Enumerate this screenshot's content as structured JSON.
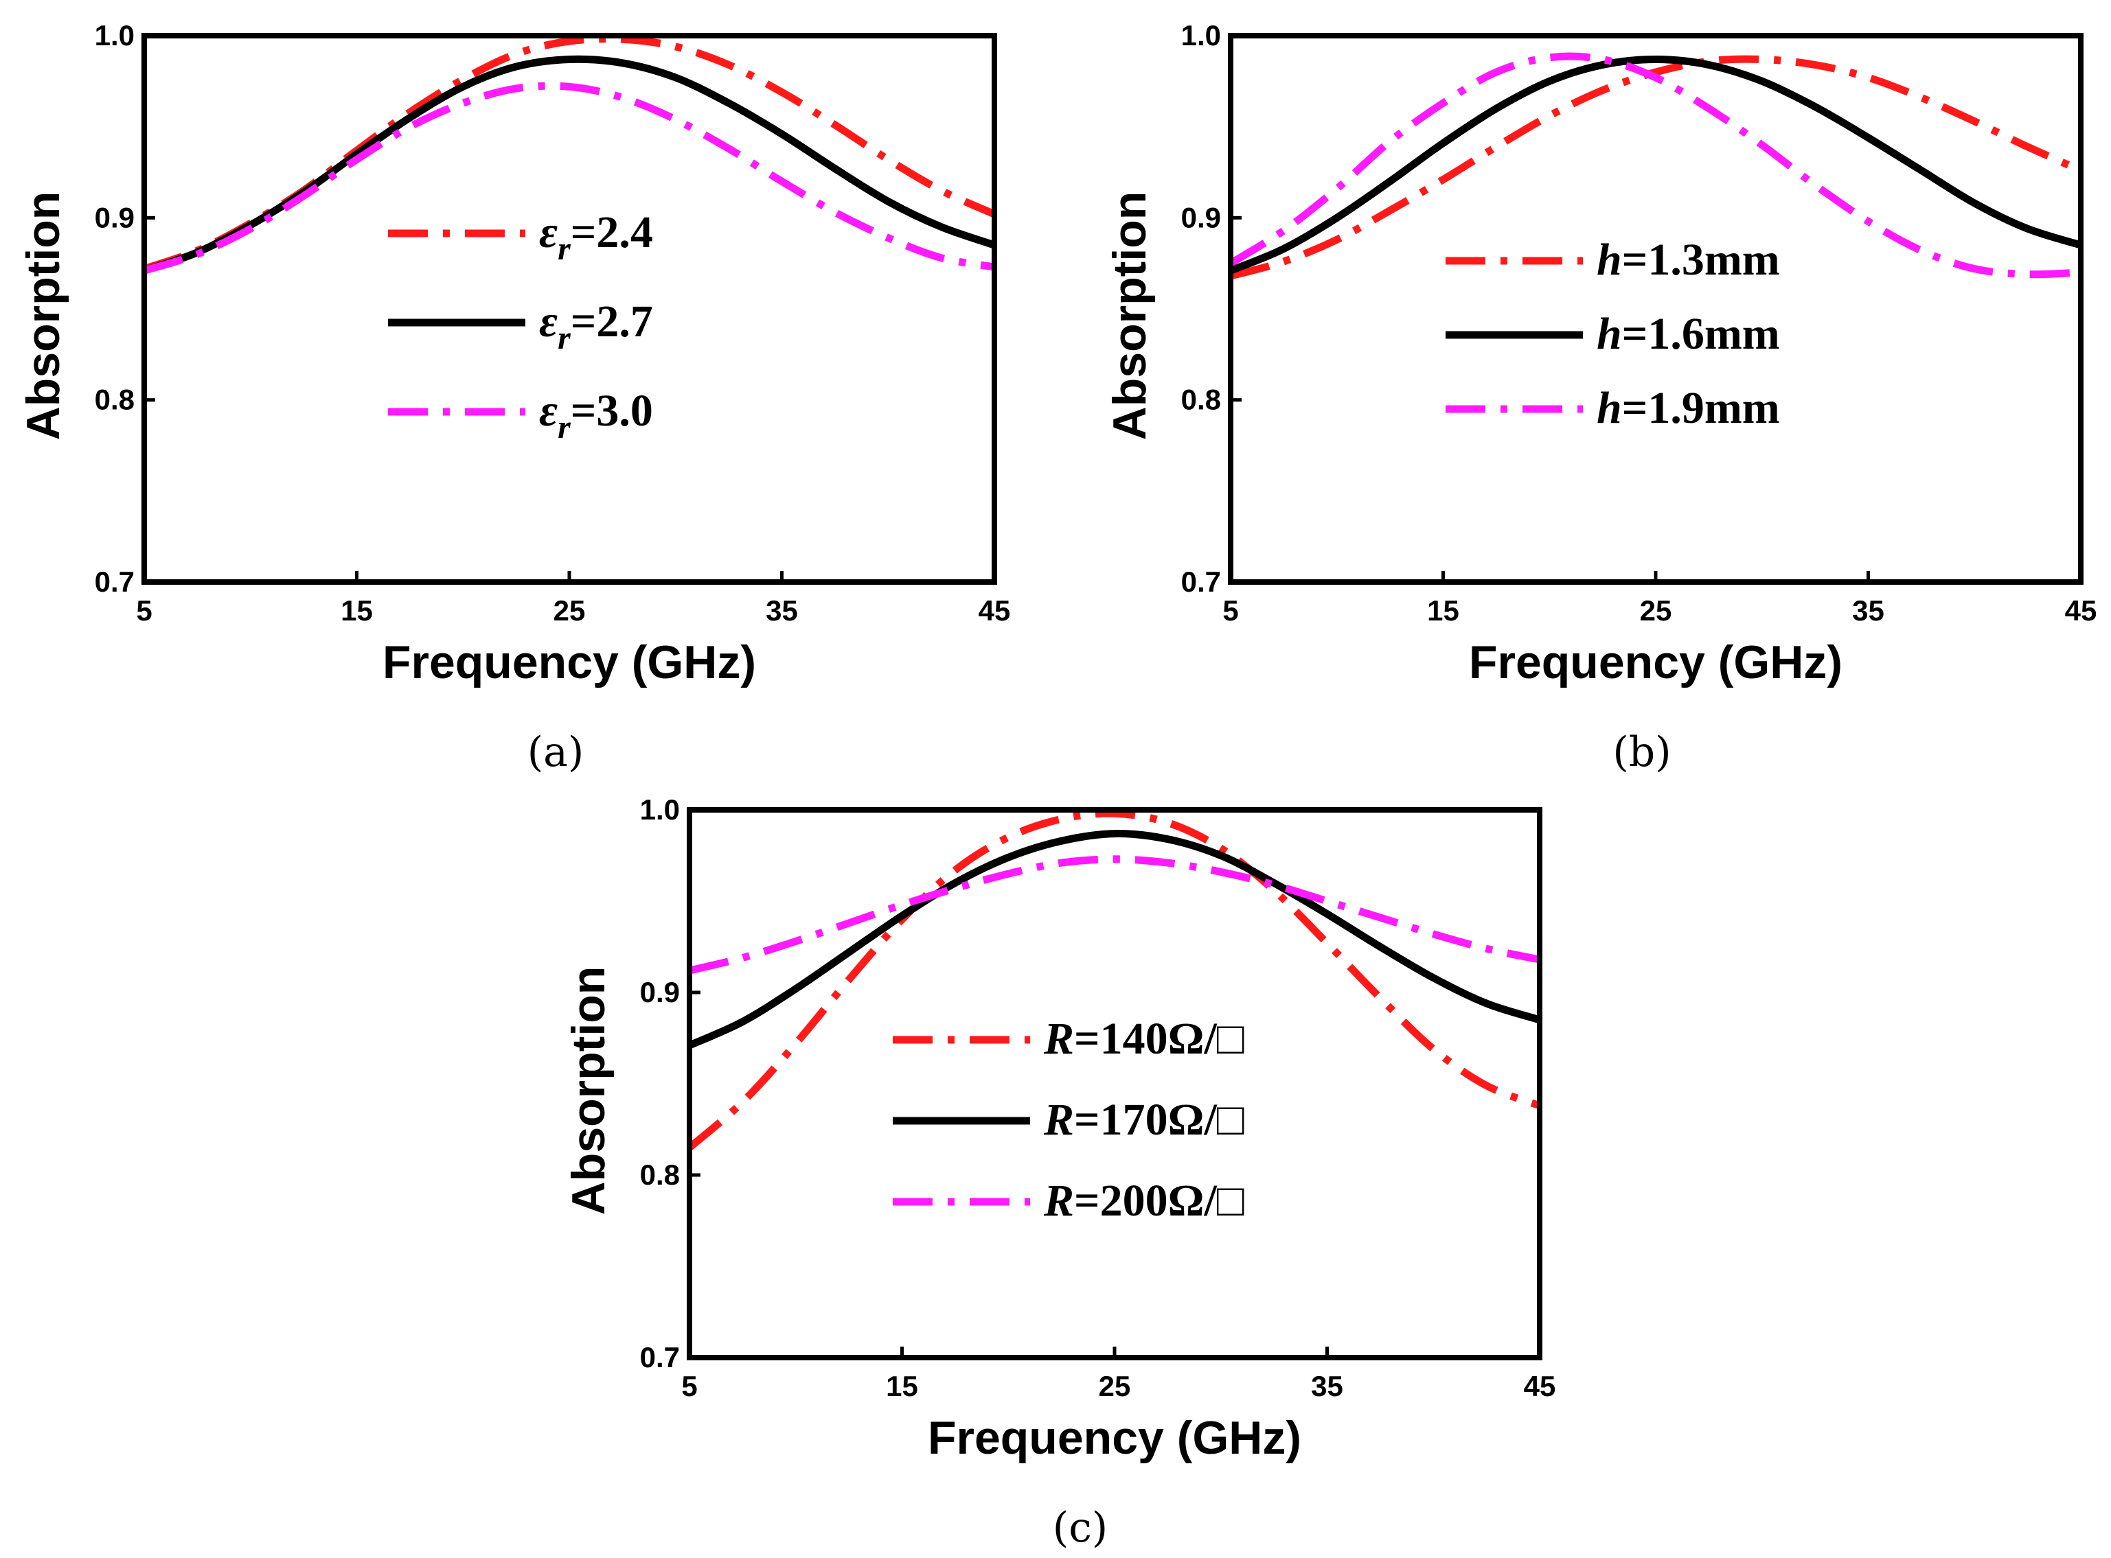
{
  "chart_data": [
    {
      "type": "line",
      "caption": "(a)",
      "xlabel": "Frequency (GHz)",
      "ylabel": "Absorption",
      "xlim": [
        5,
        45
      ],
      "ylim": [
        0.7,
        1.0
      ],
      "xticks": [
        "5",
        "15",
        "25",
        "35",
        "45"
      ],
      "yticks": [
        "0.7",
        "0.8",
        "0.9",
        "1.0"
      ],
      "grid": false,
      "legend_position": "center-left",
      "x": [
        5,
        7.5,
        10,
        12.5,
        15,
        17.5,
        20,
        22.5,
        25,
        27.5,
        30,
        32.5,
        35,
        37.5,
        40,
        42.5,
        45
      ],
      "series": [
        {
          "legend_symbol": "ε",
          "legend_subscript": "r",
          "legend_text": "=2.4",
          "color": "#ff1a1a",
          "dash": "dashdot",
          "values": [
            0.872,
            0.882,
            0.897,
            0.915,
            0.937,
            0.958,
            0.976,
            0.99,
            0.997,
            0.998,
            0.994,
            0.984,
            0.969,
            0.951,
            0.932,
            0.915,
            0.902
          ]
        },
        {
          "legend_symbol": "ε",
          "legend_subscript": "r",
          "legend_text": "=2.7",
          "color": "#000000",
          "dash": "solid",
          "values": [
            0.871,
            0.881,
            0.896,
            0.914,
            0.935,
            0.955,
            0.972,
            0.983,
            0.987,
            0.985,
            0.977,
            0.963,
            0.946,
            0.927,
            0.909,
            0.895,
            0.885
          ]
        },
        {
          "legend_symbol": "ε",
          "legend_subscript": "r",
          "legend_text": "=3.0",
          "color": "#ff1aff",
          "dash": "dashdot",
          "values": [
            0.871,
            0.88,
            0.894,
            0.912,
            0.932,
            0.95,
            0.963,
            0.971,
            0.972,
            0.966,
            0.954,
            0.938,
            0.92,
            0.903,
            0.889,
            0.878,
            0.873
          ]
        }
      ]
    },
    {
      "type": "line",
      "caption": "(b)",
      "xlabel": "Frequency (GHz)",
      "ylabel": "Absorption",
      "xlim": [
        5,
        45
      ],
      "ylim": [
        0.7,
        1.0
      ],
      "xticks": [
        "5",
        "15",
        "25",
        "35",
        "45"
      ],
      "yticks": [
        "0.7",
        "0.8",
        "0.9",
        "1.0"
      ],
      "grid": false,
      "legend_position": "center-left",
      "x": [
        5,
        7.5,
        10,
        12.5,
        15,
        17.5,
        20,
        22.5,
        25,
        27.5,
        30,
        32.5,
        35,
        37.5,
        40,
        42.5,
        45
      ],
      "series": [
        {
          "legend_symbol": "h",
          "legend_subscript": "",
          "legend_text": "=1.3mm",
          "color": "#ff1a1a",
          "dash": "dashdot",
          "values": [
            0.868,
            0.876,
            0.888,
            0.904,
            0.921,
            0.939,
            0.956,
            0.97,
            0.98,
            0.986,
            0.987,
            0.984,
            0.977,
            0.966,
            0.953,
            0.939,
            0.926
          ]
        },
        {
          "legend_symbol": "h",
          "legend_subscript": "",
          "legend_text": "=1.6mm",
          "color": "#000000",
          "dash": "solid",
          "values": [
            0.871,
            0.883,
            0.9,
            0.92,
            0.941,
            0.96,
            0.975,
            0.984,
            0.987,
            0.984,
            0.975,
            0.961,
            0.944,
            0.926,
            0.908,
            0.894,
            0.885
          ]
        },
        {
          "legend_symbol": "h",
          "legend_subscript": "",
          "legend_text": "=1.9mm",
          "color": "#ff1aff",
          "dash": "dashdot",
          "values": [
            0.875,
            0.893,
            0.916,
            0.942,
            0.963,
            0.98,
            0.988,
            0.987,
            0.977,
            0.96,
            0.94,
            0.918,
            0.898,
            0.882,
            0.872,
            0.869,
            0.87
          ]
        }
      ]
    },
    {
      "type": "line",
      "caption": "(c)",
      "xlabel": "Frequency (GHz)",
      "ylabel": "Absorption",
      "xlim": [
        5,
        45
      ],
      "ylim": [
        0.7,
        1.0
      ],
      "xticks": [
        "5",
        "15",
        "25",
        "35",
        "45"
      ],
      "yticks": [
        "0.7",
        "0.8",
        "0.9",
        "1.0"
      ],
      "grid": false,
      "legend_position": "center-left",
      "x": [
        5,
        7.5,
        10,
        12.5,
        15,
        17.5,
        20,
        22.5,
        25,
        27.5,
        30,
        32.5,
        35,
        37.5,
        40,
        42.5,
        45
      ],
      "series": [
        {
          "legend_symbol": "R",
          "legend_subscript": "",
          "legend_text": "=140Ω/□",
          "color": "#ff1a1a",
          "dash": "dashdot",
          "values": [
            0.815,
            0.84,
            0.872,
            0.907,
            0.94,
            0.967,
            0.985,
            0.995,
            0.998,
            0.993,
            0.979,
            0.956,
            0.927,
            0.897,
            0.869,
            0.849,
            0.838
          ]
        },
        {
          "legend_symbol": "R",
          "legend_subscript": "",
          "legend_text": "=170Ω/□",
          "color": "#000000",
          "dash": "solid",
          "values": [
            0.871,
            0.884,
            0.902,
            0.922,
            0.942,
            0.96,
            0.974,
            0.983,
            0.987,
            0.984,
            0.975,
            0.96,
            0.943,
            0.925,
            0.908,
            0.894,
            0.885
          ]
        },
        {
          "legend_symbol": "R",
          "legend_subscript": "",
          "legend_text": "=200Ω/□",
          "color": "#ff1aff",
          "dash": "dashdot",
          "values": [
            0.912,
            0.919,
            0.928,
            0.938,
            0.948,
            0.957,
            0.965,
            0.971,
            0.973,
            0.971,
            0.966,
            0.959,
            0.95,
            0.941,
            0.932,
            0.924,
            0.918
          ]
        }
      ]
    }
  ]
}
